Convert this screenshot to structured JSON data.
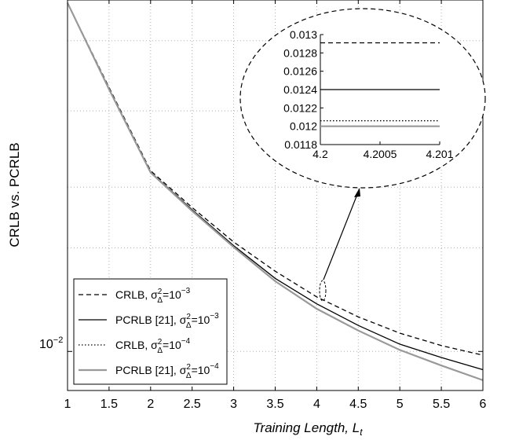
{
  "chart_data": {
    "type": "line",
    "title": "",
    "xlabel": "Training Length, ",
    "xlabel_sub": "t",
    "xlabel_var": "L",
    "ylabel": "CRLB vs. PCRLB",
    "y_scale": "log",
    "xlim": [
      1,
      6
    ],
    "ylim": [
      0.0077,
      0.105
    ],
    "grid": true,
    "x_ticks": [
      "1",
      "1.5",
      "2",
      "2.5",
      "3",
      "3.5",
      "4",
      "4.5",
      "5",
      "5.5",
      "6"
    ],
    "y_tick_label": {
      "base": "10",
      "exp": "−2"
    },
    "series": [
      {
        "name": "CRLB, σΔ²=10⁻³",
        "legend": {
          "prefix": "CRLB, ",
          "var": "σ",
          "sub": "Δ",
          "sup": "2",
          "eq": "=10",
          "exp": "−3"
        },
        "style": "dashed",
        "color": "#000000",
        "x": [
          1,
          1.5,
          2,
          2.5,
          3,
          3.5,
          4,
          4.5,
          5,
          5.5,
          6
        ],
        "y": [
          0.103,
          0.0585,
          0.0335,
          0.0262,
          0.0208,
          0.0171,
          0.0144,
          0.0126,
          0.0113,
          0.0104,
          0.00975
        ]
      },
      {
        "name": "PCRLB [21], σΔ²=10⁻³",
        "legend": {
          "prefix": "PCRLB [21], ",
          "var": "σ",
          "sub": "Δ",
          "sup": "2",
          "eq": "=10",
          "exp": "−3"
        },
        "style": "solid",
        "color": "#000000",
        "x": [
          1,
          1.5,
          2,
          2.5,
          3,
          3.5,
          4,
          4.5,
          5,
          5.5,
          6
        ],
        "y": [
          0.103,
          0.058,
          0.0332,
          0.0258,
          0.0203,
          0.0163,
          0.01375,
          0.0119,
          0.0105,
          0.0096,
          0.00885
        ]
      },
      {
        "name": "CRLB, σΔ²=10⁻⁴",
        "legend": {
          "prefix": "CRLB, ",
          "var": "σ",
          "sub": "Δ",
          "sup": "2",
          "eq": "=10",
          "exp": "−4"
        },
        "style": "dotted",
        "color": "#000000",
        "x": [
          1,
          1.5,
          2,
          2.5,
          3,
          3.5,
          4,
          4.5,
          5,
          5.5,
          6
        ],
        "y": [
          0.103,
          0.0578,
          0.0331,
          0.0256,
          0.0201,
          0.016,
          0.0133,
          0.0115,
          0.0101,
          0.0091,
          0.00825
        ]
      },
      {
        "name": "PCRLB [21], σΔ²=10⁻⁴",
        "legend": {
          "prefix": "PCRLB [21], ",
          "var": "σ",
          "sub": "Δ",
          "sup": "2",
          "eq": "=10",
          "exp": "−4"
        },
        "style": "solid",
        "color": "#999999",
        "x": [
          1,
          1.5,
          2,
          2.5,
          3,
          3.5,
          4,
          4.5,
          5,
          5.5,
          6
        ],
        "y": [
          0.103,
          0.0578,
          0.0331,
          0.0256,
          0.0201,
          0.016,
          0.0133,
          0.0115,
          0.0101,
          0.0091,
          0.00825
        ]
      }
    ],
    "legend_position": "lower-left",
    "inset": {
      "xlim": [
        4.2,
        4.201
      ],
      "ylim": [
        0.0118,
        0.013
      ],
      "x_ticks": [
        "4.2",
        "4.2005",
        "4.201"
      ],
      "y_ticks": [
        "0.013",
        "0.0128",
        "0.0126",
        "0.0124",
        "0.0122",
        "0.012",
        "0.0118"
      ],
      "lines": [
        {
          "series": 0,
          "y": 0.01291
        },
        {
          "series": 1,
          "y": 0.0124
        },
        {
          "series": 2,
          "y": 0.01206
        },
        {
          "series": 3,
          "y": 0.012
        }
      ]
    }
  }
}
